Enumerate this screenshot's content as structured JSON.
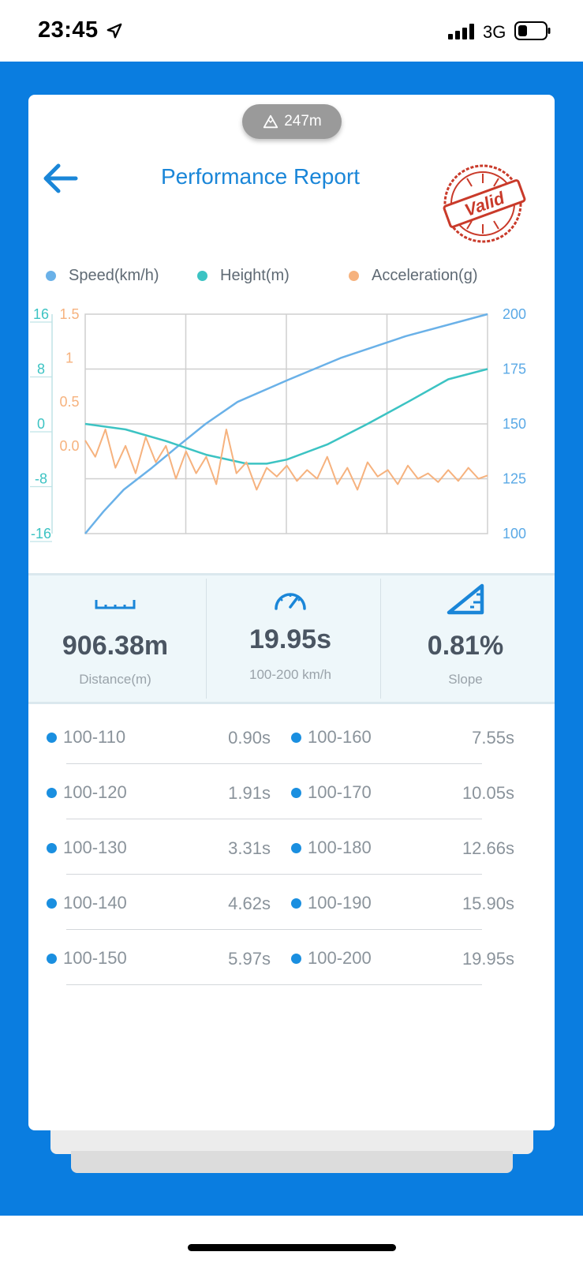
{
  "status_bar": {
    "time": "23:45",
    "network": "3G",
    "icons": [
      "location-arrow-icon",
      "signal-bars-icon",
      "battery-icon"
    ]
  },
  "altitude_badge": {
    "icon": "mountain-icon",
    "value": "247m"
  },
  "header": {
    "back_icon": "arrow-left-icon",
    "title": "Performance Report",
    "stamp_text": "Valid"
  },
  "legend": [
    {
      "label": "Speed(km/h)",
      "color": "#6ab1e8"
    },
    {
      "label": "Height(m)",
      "color": "#3cc3c3"
    },
    {
      "label": "Acceleration(g)",
      "color": "#f6b27e"
    }
  ],
  "chart_data": {
    "type": "line",
    "grid": true,
    "legend_placement": "top",
    "axes": {
      "left_outer": {
        "ticks": [
          "16",
          "8",
          "0",
          "-8",
          "-16"
        ],
        "color": "#3cc3c3"
      },
      "left_inner": {
        "ticks": [
          "1.5",
          "1",
          "0.5",
          "0.0"
        ],
        "color": "#f6b27e"
      },
      "right": {
        "ticks": [
          "200",
          "175",
          "150",
          "125",
          "100"
        ],
        "color": "#5aa9e6"
      }
    },
    "series": [
      {
        "name": "Speed(km/h)",
        "color": "#6ab1e8",
        "axis": "right",
        "ylim": [
          100,
          200
        ],
        "x": [
          0,
          0.9,
          1.91,
          3.31,
          4.62,
          5.97,
          7.55,
          10.05,
          12.66,
          15.9,
          19.95
        ],
        "y": [
          100,
          110,
          120,
          130,
          140,
          150,
          160,
          170,
          180,
          190,
          200
        ]
      },
      {
        "name": "Height(m)",
        "color": "#3cc3c3",
        "axis": "left_outer",
        "ylim": [
          -16,
          16
        ],
        "x": [
          0,
          2,
          4,
          6,
          8,
          9,
          10,
          12,
          14,
          16,
          18,
          19.95
        ],
        "y": [
          0,
          -0.8,
          -2.5,
          -4.5,
          -5.8,
          -5.8,
          -5.2,
          -3,
          0,
          3.2,
          6.5,
          8
        ]
      },
      {
        "name": "Acceleration(g)",
        "color": "#f6b27e",
        "axis": "left_inner",
        "ylim": [
          -0.5,
          1.5
        ],
        "x": [
          0,
          0.5,
          1,
          1.5,
          2,
          2.5,
          3,
          3.5,
          4,
          4.5,
          5,
          5.5,
          6,
          6.5,
          7,
          7.5,
          8,
          8.5,
          9,
          9.5,
          10,
          10.5,
          11,
          11.5,
          12,
          12.5,
          13,
          13.5,
          14,
          14.5,
          15,
          15.5,
          16,
          16.5,
          17,
          17.5,
          18,
          18.5,
          19,
          19.5,
          19.95
        ],
        "y": [
          0.35,
          0.2,
          0.45,
          0.1,
          0.3,
          0.05,
          0.38,
          0.15,
          0.3,
          0.0,
          0.25,
          0.05,
          0.2,
          -0.05,
          0.45,
          0.05,
          0.15,
          -0.1,
          0.1,
          0.02,
          0.12,
          -0.02,
          0.08,
          0.0,
          0.2,
          -0.05,
          0.1,
          -0.1,
          0.15,
          0.02,
          0.08,
          -0.05,
          0.12,
          0.0,
          0.05,
          -0.03,
          0.08,
          -0.02,
          0.1,
          0.0,
          0.03
        ]
      }
    ]
  },
  "stats": [
    {
      "icon": "ruler-icon",
      "value": "906.38m",
      "label": "Distance(m)"
    },
    {
      "icon": "speedometer-icon",
      "value": "19.95s",
      "label": "100-200 km/h"
    },
    {
      "icon": "slope-icon",
      "value": "0.81%",
      "label": "Slope"
    }
  ],
  "splits": [
    {
      "left": {
        "range": "100-110",
        "time": "0.90s"
      },
      "right": {
        "range": "100-160",
        "time": "7.55s"
      }
    },
    {
      "left": {
        "range": "100-120",
        "time": "1.91s"
      },
      "right": {
        "range": "100-170",
        "time": "10.05s"
      }
    },
    {
      "left": {
        "range": "100-130",
        "time": "3.31s"
      },
      "right": {
        "range": "100-180",
        "time": "12.66s"
      }
    },
    {
      "left": {
        "range": "100-140",
        "time": "4.62s"
      },
      "right": {
        "range": "100-190",
        "time": "15.90s"
      }
    },
    {
      "left": {
        "range": "100-150",
        "time": "5.97s"
      },
      "right": {
        "range": "100-200",
        "time": "19.95s"
      }
    }
  ],
  "colors": {
    "accent": "#0a7de0",
    "title": "#1a86d8",
    "stamp": "#c93a2a",
    "dot": "#1a8fe0"
  }
}
